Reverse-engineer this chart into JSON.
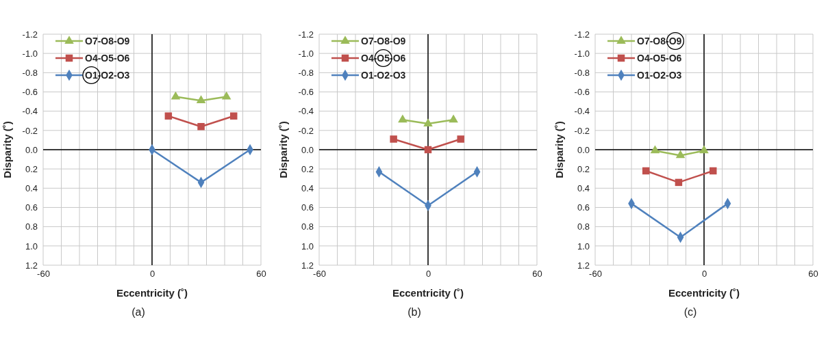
{
  "chart_data": [
    {
      "type": "line",
      "xlabel": "Eccentricity (˚)",
      "ylabel": "Disparity (˚)",
      "annotations": [
        "(a)"
      ],
      "xlim": [
        -60,
        60
      ],
      "ylim": [
        1.2,
        -1.2
      ],
      "xticks": [
        -60,
        {
          "value": -50,
          "label": null
        },
        {
          "value": -40,
          "label": null
        },
        {
          "value": -30,
          "label": null
        },
        {
          "value": -20,
          "label": null
        },
        {
          "value": -10,
          "label": null
        },
        0,
        {
          "value": 10,
          "label": null
        },
        {
          "value": 20,
          "label": null
        },
        {
          "value": 30,
          "label": null
        },
        {
          "value": 40,
          "label": null
        },
        {
          "value": 50,
          "label": null
        },
        60
      ],
      "yticks": [
        {
          "value": -1.2,
          "label": "-1.2"
        },
        {
          "value": -1,
          "label": "-1.0"
        },
        {
          "value": -0.8,
          "label": "-0.8"
        },
        {
          "value": -0.6,
          "label": "-0.6"
        },
        {
          "value": -0.4,
          "label": "-0.4"
        },
        {
          "value": -0.2,
          "label": "-0.2"
        },
        {
          "value": 0,
          "label": "0.0"
        },
        {
          "value": 0.2,
          "label": "0.2"
        },
        {
          "value": 0.4,
          "label": "0.4"
        },
        {
          "value": 0.6,
          "label": "0.6"
        },
        {
          "value": 0.8,
          "label": "0.8"
        },
        {
          "value": 1,
          "label": "1.0"
        },
        {
          "value": 1.2,
          "label": "1.2"
        }
      ],
      "grid": true,
      "legend": "top left",
      "series": [
        {
          "name": "O7-O8-O9",
          "color": "#9bbb59",
          "marker": "triangle",
          "x": [
            13,
            27,
            41
          ],
          "values": [
            -0.55,
            -0.51,
            -0.55
          ]
        },
        {
          "name": "O4-O5-O6",
          "color": "#c0504d",
          "marker": "square",
          "x": [
            9,
            27,
            45
          ],
          "values": [
            -0.35,
            -0.24,
            -0.35
          ]
        },
        {
          "name": "O1-O2-O3",
          "color": "#4f81bd",
          "marker": "diamond",
          "x": [
            0,
            27,
            54
          ],
          "values": [
            0,
            0.34,
            0
          ]
        }
      ]
    },
    {
      "type": "line",
      "xlabel": "Eccentricity (˚)",
      "ylabel": "Disparity (˚)",
      "annotations": [
        "(b)"
      ],
      "xlim": [
        -60,
        60
      ],
      "ylim": [
        1.2,
        -1.2
      ],
      "xticks": [
        -60,
        {
          "value": -50,
          "label": null
        },
        {
          "value": -40,
          "label": null
        },
        {
          "value": -30,
          "label": null
        },
        {
          "value": -20,
          "label": null
        },
        {
          "value": -10,
          "label": null
        },
        0,
        {
          "value": 10,
          "label": null
        },
        {
          "value": 20,
          "label": null
        },
        {
          "value": 30,
          "label": null
        },
        {
          "value": 40,
          "label": null
        },
        {
          "value": 50,
          "label": null
        },
        60
      ],
      "yticks": [
        {
          "value": -1.2,
          "label": "-1.2"
        },
        {
          "value": -1,
          "label": "-1.0"
        },
        {
          "value": -0.8,
          "label": "-0.8"
        },
        {
          "value": -0.6,
          "label": "-0.6"
        },
        {
          "value": -0.4,
          "label": "-0.4"
        },
        {
          "value": -0.2,
          "label": "-0.2"
        },
        {
          "value": 0,
          "label": "0.0"
        },
        {
          "value": 0.2,
          "label": "0.2"
        },
        {
          "value": 0.4,
          "label": "0.4"
        },
        {
          "value": 0.6,
          "label": "0.6"
        },
        {
          "value": 0.8,
          "label": "0.8"
        },
        {
          "value": 1,
          "label": "1.0"
        },
        {
          "value": 1.2,
          "label": "1.2"
        }
      ],
      "grid": true,
      "legend": "top left",
      "series": [
        {
          "name": "O7-O8-O9",
          "color": "#9bbb59",
          "marker": "triangle",
          "x": [
            -14,
            0,
            14
          ],
          "values": [
            -0.31,
            -0.27,
            -0.31
          ]
        },
        {
          "name": "O4-O5-O6",
          "color": "#c0504d",
          "marker": "square",
          "x": [
            -19,
            0,
            18
          ],
          "values": [
            -0.11,
            0,
            -0.11
          ]
        },
        {
          "name": "O1-O2-O3",
          "color": "#4f81bd",
          "marker": "diamond",
          "x": [
            -27,
            0,
            27
          ],
          "values": [
            0.23,
            0.58,
            0.23
          ]
        }
      ]
    },
    {
      "type": "line",
      "xlabel": "Eccentricity (˚)",
      "ylabel": "Disparity (˚)",
      "annotations": [
        "(c)"
      ],
      "xlim": [
        -60,
        60
      ],
      "ylim": [
        1.2,
        -1.2
      ],
      "xticks": [
        -60,
        {
          "value": -50,
          "label": null
        },
        {
          "value": -40,
          "label": null
        },
        {
          "value": -30,
          "label": null
        },
        {
          "value": -20,
          "label": null
        },
        {
          "value": -10,
          "label": null
        },
        0,
        {
          "value": 10,
          "label": null
        },
        {
          "value": 20,
          "label": null
        },
        {
          "value": 30,
          "label": null
        },
        {
          "value": 40,
          "label": null
        },
        {
          "value": 50,
          "label": null
        },
        60
      ],
      "yticks": [
        {
          "value": -1.2,
          "label": "-1.2"
        },
        {
          "value": -1,
          "label": "-1.0"
        },
        {
          "value": -0.8,
          "label": "-0.8"
        },
        {
          "value": -0.6,
          "label": "-0.6"
        },
        {
          "value": -0.4,
          "label": "-0.4"
        },
        {
          "value": -0.2,
          "label": "-0.2"
        },
        {
          "value": 0,
          "label": "0.0"
        },
        {
          "value": 0.2,
          "label": "0.2"
        },
        {
          "value": 0.4,
          "label": "0.4"
        },
        {
          "value": 0.6,
          "label": "0.6"
        },
        {
          "value": 0.8,
          "label": "0.8"
        },
        {
          "value": 1,
          "label": "1.0"
        },
        {
          "value": 1.2,
          "label": "1.2"
        }
      ],
      "grid": true,
      "legend": "top left",
      "series": [
        {
          "name": "O7-O8-O9",
          "color": "#9bbb59",
          "marker": "triangle",
          "x": [
            -27,
            -13,
            0
          ],
          "values": [
            0.01,
            0.06,
            0.01
          ]
        },
        {
          "name": "O4-O5-O6",
          "color": "#c0504d",
          "marker": "square",
          "x": [
            -32,
            -14,
            5
          ],
          "values": [
            0.22,
            0.34,
            0.22
          ]
        },
        {
          "name": "O1-O2-O3",
          "color": "#4f81bd",
          "marker": "diamond",
          "x": [
            -40,
            -13,
            13
          ],
          "values": [
            0.56,
            0.91,
            0.56
          ]
        }
      ]
    }
  ]
}
